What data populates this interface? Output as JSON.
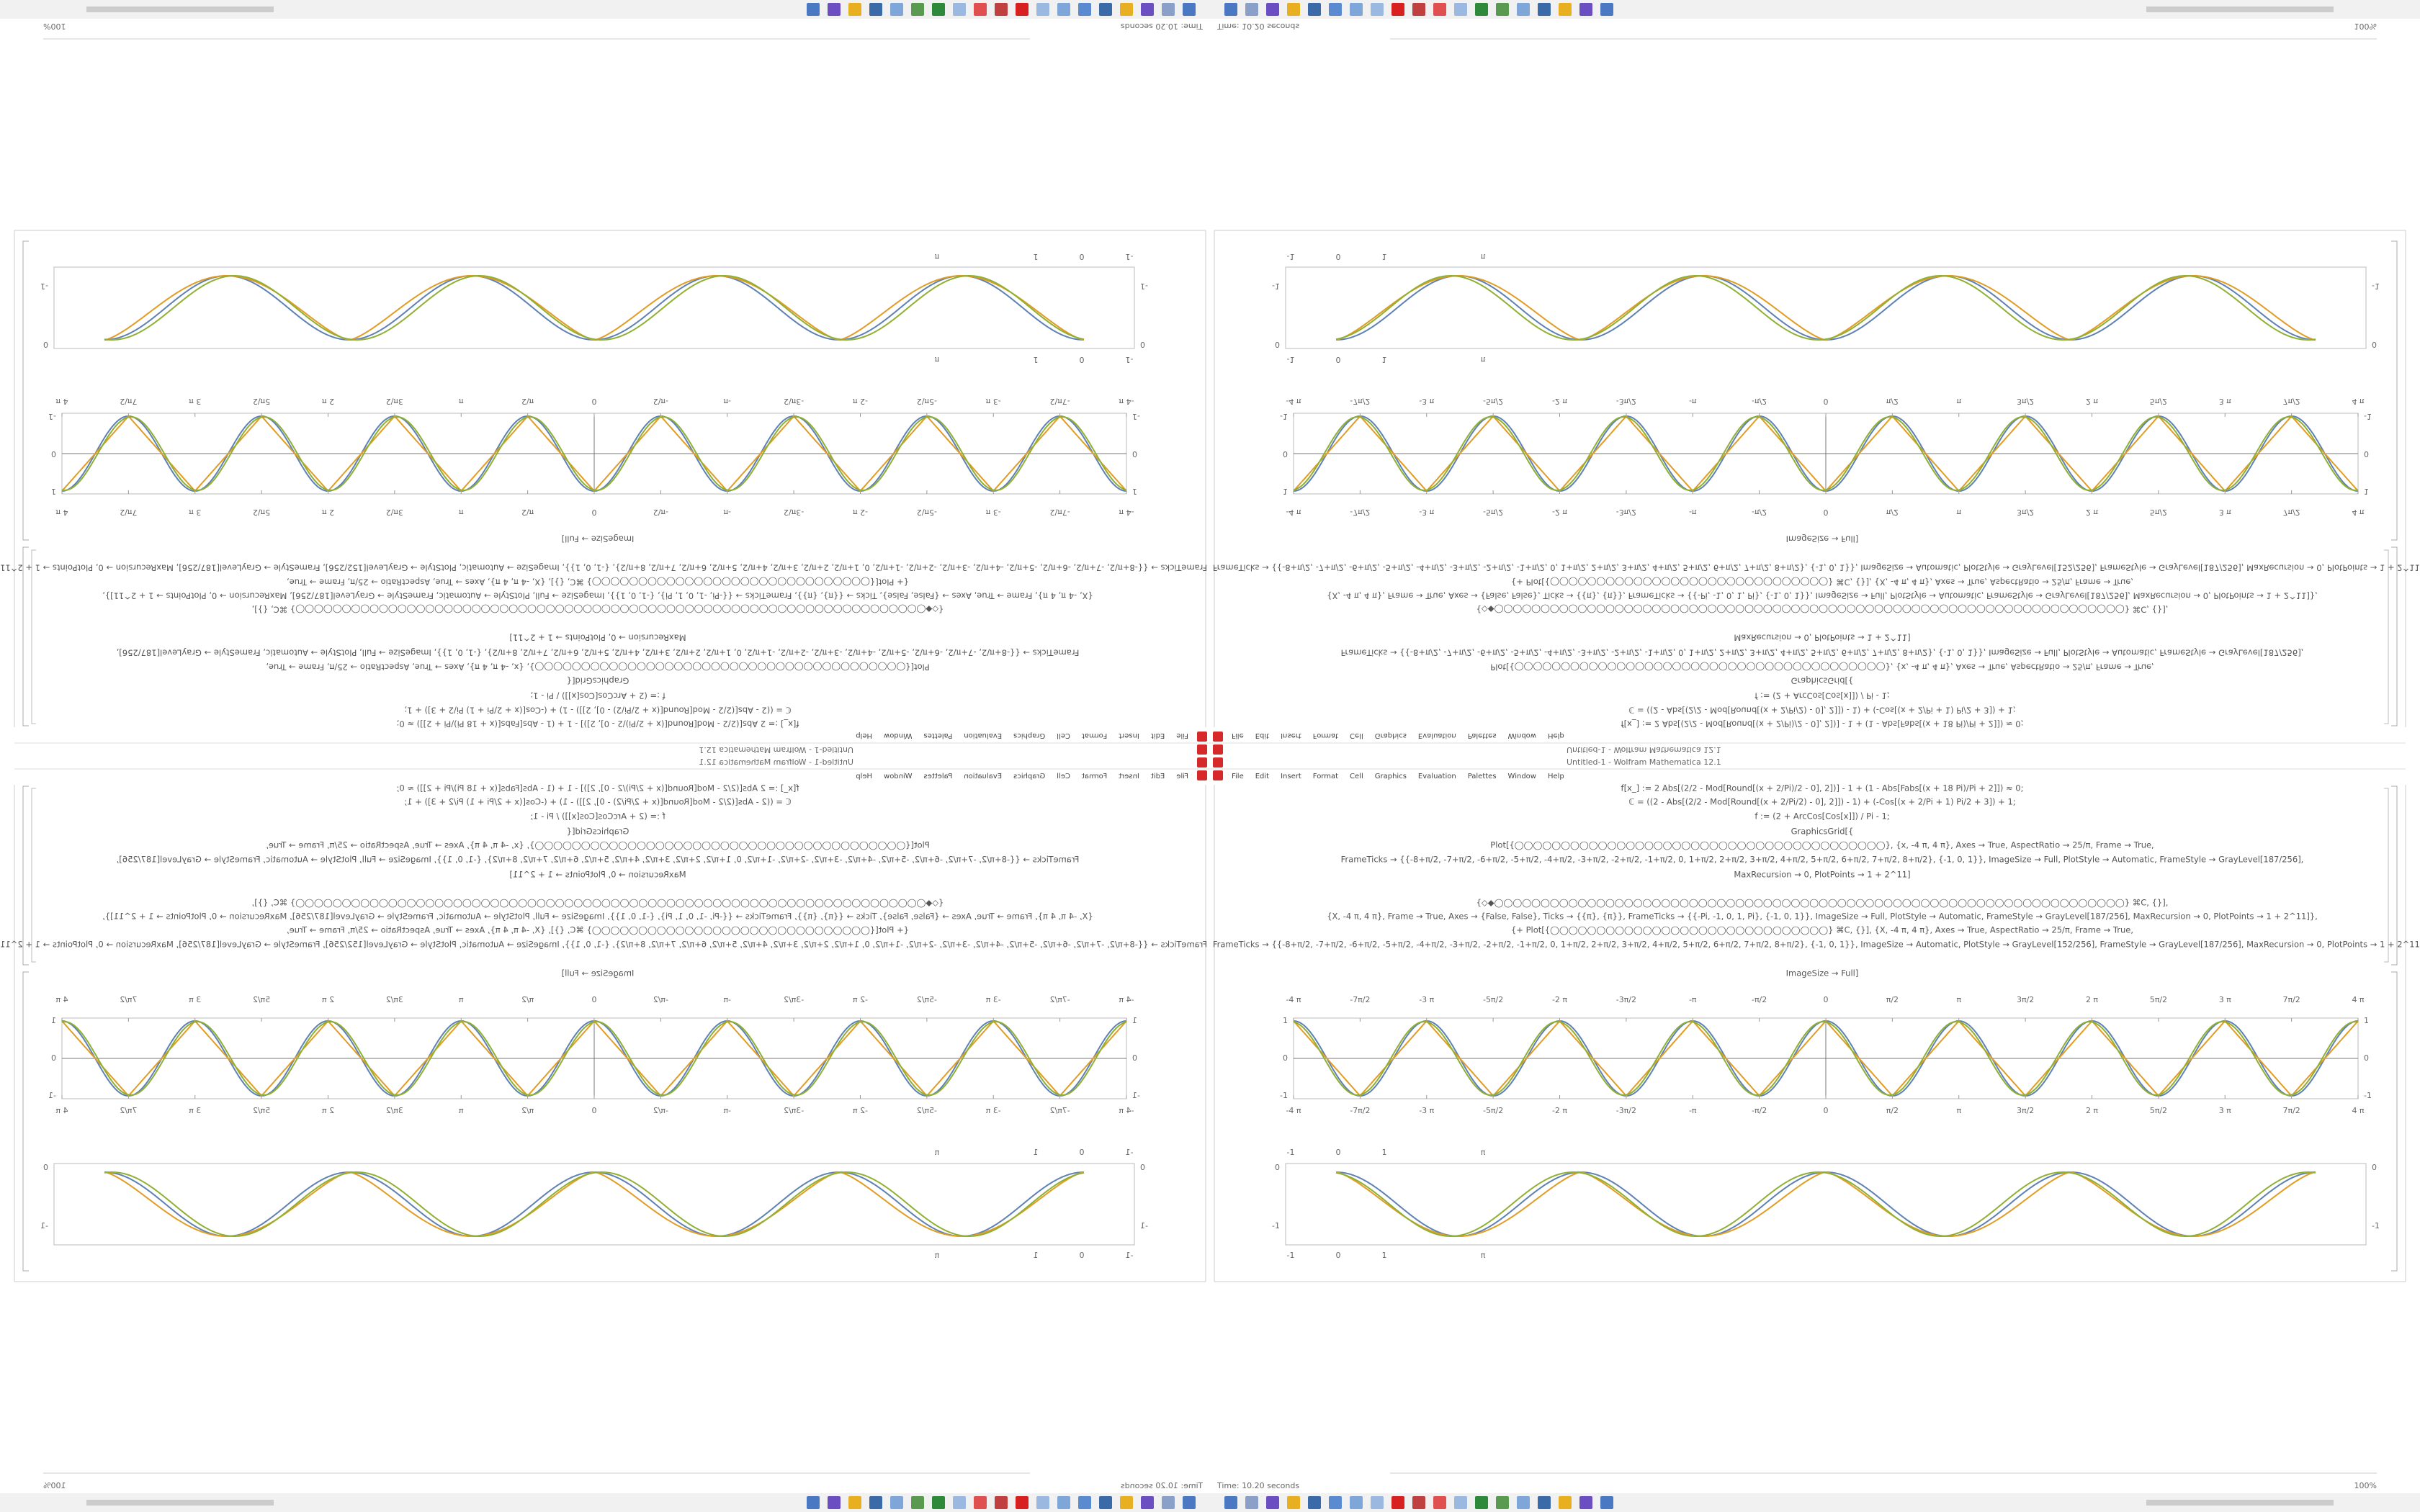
{
  "window": {
    "title": "Untitled-1 - Wolfram Mathematica 12.1",
    "menu": [
      "File",
      "Edit",
      "Insert",
      "Format",
      "Cell",
      "Graphics",
      "Evaluation",
      "Palettes",
      "Window",
      "Help"
    ],
    "status": "Time: 10.20 seconds",
    "zoom": "100%"
  },
  "notebook": {
    "code": [
      "f[x_] := 2 Abs[(2/2 - Mod[Round[(x + 2/Pi)/2 - 0], 2])] - 1 + (1 - Abs[Fabs[(x + 18 Pi)/Pi + 2]]) ≈ 0;",
      "ℂ = ((2 - Abs[(2/2 - Mod[Round[(x + 2/Pi/2) - 0], 2]]) - 1) + (-Cos[(x + 2/Pi + 1) Pi/2 + 3]) + 1;",
      "f := (2 + ArcCos[Cos[x]]) / Pi - 1;",
      "GraphicsGrid[{",
      "Plot[{◯◯◯◯◯◯◯◯◯◯◯◯◯◯◯◯◯◯◯◯◯◯◯◯◯◯◯◯◯◯◯◯◯◯◯◯◯◯◯◯}, {x, -4 π, 4 π}, Axes → True, AspectRatio → 25/π, Frame → True,",
      "FrameTicks → {{-8+π/2, -7+π/2, -6+π/2, -5+π/2, -4+π/2, -3+π/2, -2+π/2, -1+π/2, 0, 1+π/2, 2+π/2, 3+π/2, 4+π/2, 5+π/2, 6+π/2, 7+π/2, 8+π/2}, {-1, 0, 1}}, ImageSize → Full, PlotStyle → Automatic, FrameStyle → GrayLevel[187/256],",
      "MaxRecursion → 0, PlotPoints → 1 + 2^11]",
      "{◇◆◯◯◯◯◯◯◯◯◯◯◯◯◯◯◯◯◯◯◯◯◯◯◯◯◯◯◯◯◯◯◯◯◯◯◯◯◯◯◯◯◯◯◯◯◯◯◯◯◯◯◯◯◯◯◯◯◯◯◯◯◯◯◯◯◯◯◯◯} ⌘C, {}],",
      "{X, -4 π, 4 π}, Frame → True, Axes → {False, False}, Ticks → {{π}, {π}}, FrameTicks → {{-Pi, -1, 0, 1, Pi}, {-1, 0, 1}}, ImageSize → Full, PlotStyle → Automatic, FrameStyle → GrayLevel[187/256], MaxRecursion → 0, PlotPoints → 1 + 2^11]},",
      "{+ Plot[{◯◯◯◯◯◯◯◯◯◯◯◯◯◯◯◯◯◯◯◯◯◯◯◯◯◯◯◯◯◯} ⌘C, {}], {X, -4 π, 4 π}, Axes → True, AspectRatio → 25/π, Frame → True,",
      "FrameTicks → {{-8+π/2, -7+π/2, -6+π/2, -5+π/2, -4+π/2, -3+π/2, -2+π/2, -1+π/2, 0, 1+π/2, 2+π/2, 3+π/2, 4+π/2, 5+π/2, 6+π/2, 7+π/2, 8+π/2}, {-1, 0, 1}}, ImageSize → Automatic, PlotStyle → GrayLevel[152/256], FrameStyle → GrayLevel[187/256], MaxRecursion → 0, PlotPoints → 1 + 2^11]}]",
      "ImageSize → Full]"
    ]
  },
  "plot_1": {
    "x_tick_labels": [
      "-4 π",
      "-7π/2",
      "-3 π",
      "-5π/2",
      "-2 π",
      "-3π/2",
      "-π",
      "-π/2",
      "0",
      "π/2",
      "π",
      "3π/2",
      "2 π",
      "5π/2",
      "3 π",
      "7π/2",
      "4 π"
    ],
    "y_tick_labels": [
      "1",
      "0",
      "-1"
    ]
  },
  "plot_2": {
    "x_tick_labels": [
      "-1",
      "0",
      "1",
      "π"
    ],
    "y_tick_labels": [
      "0",
      "-1"
    ]
  }
}
